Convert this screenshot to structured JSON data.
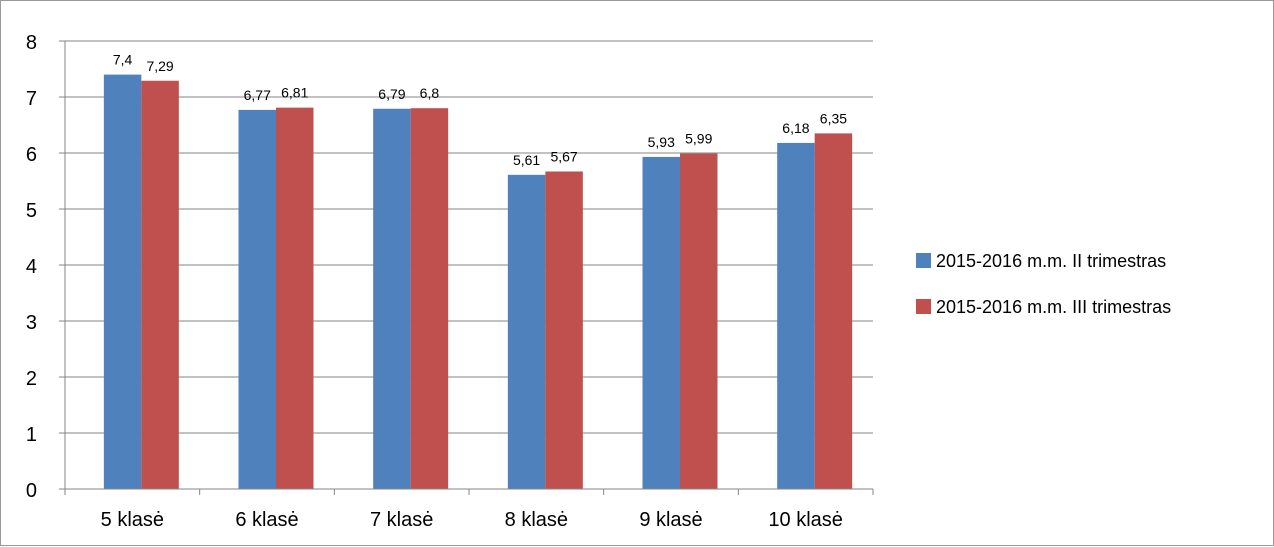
{
  "chart_data": {
    "type": "bar",
    "title": "",
    "xlabel": "",
    "ylabel": "",
    "categories": [
      "5 klasė",
      "6 klasė",
      "7 klasė",
      "8 klasė",
      "9 klasė",
      "10 klasė"
    ],
    "series": [
      {
        "name": "2015-2016 m.m. II trimestras",
        "color": "#4f81bd",
        "values": [
          7.4,
          6.77,
          6.79,
          5.61,
          5.93,
          6.18
        ],
        "labels": [
          "7,4",
          "6,77",
          "6,79",
          "5,61",
          "5,93",
          "6,18"
        ]
      },
      {
        "name": "2015-2016 m.m. III trimestras",
        "color": "#c0504d",
        "values": [
          7.29,
          6.81,
          6.8,
          5.67,
          5.99,
          6.35
        ],
        "labels": [
          "7,29",
          "6,81",
          "6,8",
          "5,67",
          "5,99",
          "6,35"
        ]
      }
    ],
    "ylim": [
      0,
      8
    ],
    "yticks": [
      0,
      1,
      2,
      3,
      4,
      5,
      6,
      7,
      8
    ],
    "grid": true,
    "legend_position": "right"
  }
}
